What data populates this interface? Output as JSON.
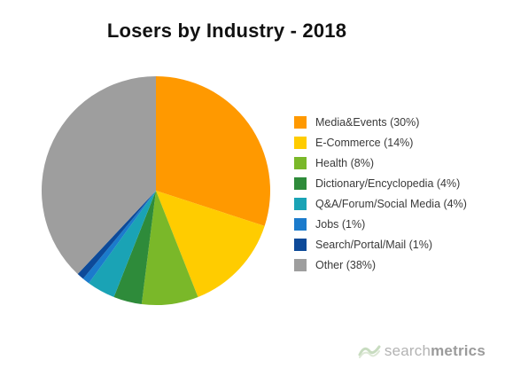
{
  "chart_data": {
    "type": "pie",
    "title": "Losers by Industry - 2018",
    "slices": [
      {
        "label": "Media&Events (30%)",
        "value": 30,
        "color": "#FF9900"
      },
      {
        "label": "E-Commerce (14%)",
        "value": 14,
        "color": "#FFCC00"
      },
      {
        "label": "Health (8%)",
        "value": 8,
        "color": "#7AB829"
      },
      {
        "label": "Dictionary/Encyclopedia (4%)",
        "value": 4,
        "color": "#2E8B3A"
      },
      {
        "label": "Q&A/Forum/Social Media (4%)",
        "value": 4,
        "color": "#1AA3B5"
      },
      {
        "label": "Jobs (1%)",
        "value": 1,
        "color": "#1B7BCC"
      },
      {
        "label": "Search/Portal/Mail (1%)",
        "value": 1,
        "color": "#0D4A99"
      },
      {
        "label": "Other (38%)",
        "value": 38,
        "color": "#9E9E9E"
      }
    ],
    "legend_position": "right",
    "start_angle": "12 o'clock",
    "direction": "clockwise"
  },
  "logo": {
    "text_light": "search",
    "text_bold": "metrics",
    "icon": "searchmetrics-logo-icon"
  }
}
